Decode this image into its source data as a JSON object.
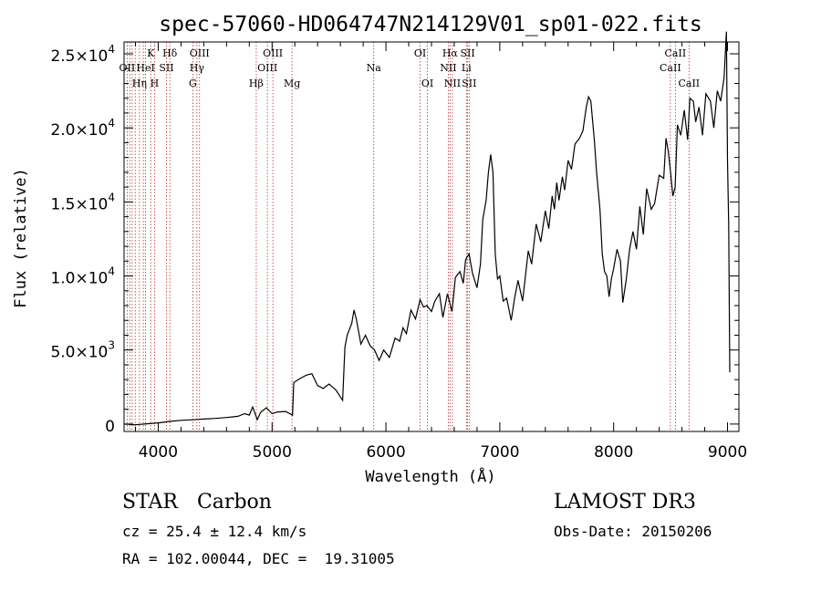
{
  "chart_data": {
    "type": "line",
    "title": "spec-57060-HD064747N214129V01_sp01-022.fits",
    "xlabel": "Wavelength (Å)",
    "ylabel": "Flux (relative)",
    "xlim": [
      3700,
      9100
    ],
    "ylim": [
      -500,
      25800
    ],
    "x_ticks": [
      {
        "value": 4000,
        "label": "4000"
      },
      {
        "value": 5000,
        "label": "5000"
      },
      {
        "value": 6000,
        "label": "6000"
      },
      {
        "value": 7000,
        "label": "7000"
      },
      {
        "value": 8000,
        "label": "8000"
      },
      {
        "value": 9000,
        "label": "9000"
      }
    ],
    "y_ticks": [
      {
        "value": 0,
        "mant": "0",
        "exp": ""
      },
      {
        "value": 5000,
        "mant": "5.0×10",
        "exp": "3"
      },
      {
        "value": 10000,
        "mant": "1.0×10",
        "exp": "4"
      },
      {
        "value": 15000,
        "mant": "1.5×10",
        "exp": "4"
      },
      {
        "value": 20000,
        "mant": "2.0×10",
        "exp": "4"
      },
      {
        "value": 25000,
        "mant": "2.5×10",
        "exp": "4"
      }
    ],
    "lines": [
      {
        "wl": 3727,
        "label": "OII",
        "row": 1
      },
      {
        "wl": 3750,
        "label": "",
        "row": 0
      },
      {
        "wl": 3771,
        "label": "",
        "row": 0
      },
      {
        "wl": 3798,
        "label": "",
        "row": 0
      },
      {
        "wl": 3835,
        "label": "Hη",
        "row": 2
      },
      {
        "wl": 3869,
        "label": "",
        "row": 0
      },
      {
        "wl": 3889,
        "label": "HeI",
        "row": 1
      },
      {
        "wl": 3934,
        "label": "K",
        "row": 0
      },
      {
        "wl": 3968,
        "label": "H",
        "row": 2
      },
      {
        "wl": 4072,
        "label": "SII",
        "row": 1
      },
      {
        "wl": 4102,
        "label": "Hδ",
        "row": 0
      },
      {
        "wl": 4304,
        "label": "G",
        "row": 2
      },
      {
        "wl": 4340,
        "label": "Hγ",
        "row": 1
      },
      {
        "wl": 4363,
        "label": "OIII",
        "row": 0
      },
      {
        "wl": 4861,
        "label": "Hβ",
        "row": 2
      },
      {
        "wl": 4959,
        "label": "OIII",
        "row": 1
      },
      {
        "wl": 5007,
        "label": "OIII",
        "row": 0
      },
      {
        "wl": 5175,
        "label": "Mg",
        "row": 2
      },
      {
        "wl": 5893,
        "label": "Na",
        "row": 1
      },
      {
        "wl": 6300,
        "label": "OI",
        "row": 0
      },
      {
        "wl": 6364,
        "label": "OI",
        "row": 2
      },
      {
        "wl": 6548,
        "label": "NII",
        "row": 1
      },
      {
        "wl": 6563,
        "label": "Hα",
        "row": 0
      },
      {
        "wl": 6584,
        "label": "NII",
        "row": 2
      },
      {
        "wl": 6707,
        "label": "Li",
        "row": 1
      },
      {
        "wl": 6717,
        "label": "SII",
        "row": 0
      },
      {
        "wl": 6731,
        "label": "SII",
        "row": 2
      },
      {
        "wl": 8498,
        "label": "CaII",
        "row": 1
      },
      {
        "wl": 8542,
        "label": "CaII",
        "row": 0
      },
      {
        "wl": 8662,
        "label": "CaII",
        "row": 2
      }
    ],
    "series": [
      {
        "name": "flux",
        "points": [
          [
            3700,
            0
          ],
          [
            3800,
            -50
          ],
          [
            3900,
            20
          ],
          [
            4000,
            80
          ],
          [
            4100,
            180
          ],
          [
            4200,
            250
          ],
          [
            4300,
            290
          ],
          [
            4400,
            340
          ],
          [
            4500,
            380
          ],
          [
            4600,
            440
          ],
          [
            4700,
            520
          ],
          [
            4760,
            700
          ],
          [
            4800,
            600
          ],
          [
            4830,
            1150
          ],
          [
            4870,
            300
          ],
          [
            4900,
            800
          ],
          [
            4950,
            1100
          ],
          [
            5000,
            700
          ],
          [
            5050,
            820
          ],
          [
            5120,
            850
          ],
          [
            5180,
            600
          ],
          [
            5190,
            2800
          ],
          [
            5250,
            3100
          ],
          [
            5300,
            3300
          ],
          [
            5350,
            3400
          ],
          [
            5400,
            2600
          ],
          [
            5450,
            2400
          ],
          [
            5500,
            2700
          ],
          [
            5560,
            2300
          ],
          [
            5620,
            1600
          ],
          [
            5640,
            5200
          ],
          [
            5660,
            6000
          ],
          [
            5700,
            6800
          ],
          [
            5720,
            7700
          ],
          [
            5740,
            7100
          ],
          [
            5780,
            5400
          ],
          [
            5820,
            6000
          ],
          [
            5860,
            5300
          ],
          [
            5900,
            5000
          ],
          [
            5940,
            4300
          ],
          [
            5980,
            5000
          ],
          [
            6030,
            4500
          ],
          [
            6080,
            5800
          ],
          [
            6120,
            5600
          ],
          [
            6150,
            6500
          ],
          [
            6180,
            6100
          ],
          [
            6220,
            7700
          ],
          [
            6260,
            7100
          ],
          [
            6300,
            8400
          ],
          [
            6330,
            7900
          ],
          [
            6360,
            8000
          ],
          [
            6400,
            7600
          ],
          [
            6430,
            8300
          ],
          [
            6470,
            8800
          ],
          [
            6500,
            7200
          ],
          [
            6540,
            8800
          ],
          [
            6580,
            7600
          ],
          [
            6610,
            9900
          ],
          [
            6650,
            10300
          ],
          [
            6680,
            9500
          ],
          [
            6700,
            11100
          ],
          [
            6730,
            11500
          ],
          [
            6760,
            10200
          ],
          [
            6800,
            9200
          ],
          [
            6830,
            10800
          ],
          [
            6850,
            13800
          ],
          [
            6880,
            15100
          ],
          [
            6900,
            17000
          ],
          [
            6920,
            18200
          ],
          [
            6940,
            17000
          ],
          [
            6960,
            11500
          ],
          [
            6980,
            9800
          ],
          [
            7000,
            10000
          ],
          [
            7030,
            8300
          ],
          [
            7060,
            8500
          ],
          [
            7100,
            7000
          ],
          [
            7130,
            8500
          ],
          [
            7160,
            9700
          ],
          [
            7200,
            8300
          ],
          [
            7250,
            11700
          ],
          [
            7280,
            10800
          ],
          [
            7320,
            13500
          ],
          [
            7360,
            12300
          ],
          [
            7400,
            14400
          ],
          [
            7430,
            13200
          ],
          [
            7460,
            15400
          ],
          [
            7480,
            14500
          ],
          [
            7500,
            16300
          ],
          [
            7520,
            15100
          ],
          [
            7550,
            16700
          ],
          [
            7570,
            15800
          ],
          [
            7600,
            17800
          ],
          [
            7630,
            17200
          ],
          [
            7660,
            18900
          ],
          [
            7700,
            19300
          ],
          [
            7730,
            19800
          ],
          [
            7760,
            21400
          ],
          [
            7780,
            22100
          ],
          [
            7800,
            21800
          ],
          [
            7830,
            19200
          ],
          [
            7850,
            17000
          ],
          [
            7880,
            14500
          ],
          [
            7900,
            11500
          ],
          [
            7920,
            10300
          ],
          [
            7940,
            10000
          ],
          [
            7960,
            8600
          ],
          [
            7980,
            9800
          ],
          [
            8000,
            10500
          ],
          [
            8030,
            11800
          ],
          [
            8060,
            11000
          ],
          [
            8080,
            8200
          ],
          [
            8110,
            9700
          ],
          [
            8140,
            11800
          ],
          [
            8170,
            13000
          ],
          [
            8200,
            11800
          ],
          [
            8230,
            14700
          ],
          [
            8260,
            12800
          ],
          [
            8290,
            15900
          ],
          [
            8330,
            14500
          ],
          [
            8360,
            14900
          ],
          [
            8400,
            16800
          ],
          [
            8440,
            16600
          ],
          [
            8460,
            19300
          ],
          [
            8480,
            18400
          ],
          [
            8500,
            17000
          ],
          [
            8520,
            15400
          ],
          [
            8540,
            16000
          ],
          [
            8560,
            20200
          ],
          [
            8590,
            19500
          ],
          [
            8620,
            21200
          ],
          [
            8650,
            19200
          ],
          [
            8670,
            22000
          ],
          [
            8700,
            21800
          ],
          [
            8720,
            20400
          ],
          [
            8750,
            21400
          ],
          [
            8780,
            19500
          ],
          [
            8810,
            22300
          ],
          [
            8850,
            21800
          ],
          [
            8880,
            20000
          ],
          [
            8910,
            22500
          ],
          [
            8940,
            21800
          ],
          [
            8970,
            23400
          ],
          [
            8990,
            26500
          ],
          [
            9000,
            17800
          ],
          [
            9010,
            13500
          ],
          [
            9020,
            3500
          ]
        ]
      }
    ]
  },
  "info": {
    "object_class": "STAR   Carbon",
    "cz": "cz = 25.4 ± 12.4 km/s",
    "radec": "RA = 102.00044, DEC =  19.31005",
    "survey": "LAMOST DR3",
    "obs_date": "Obs-Date: 20150206"
  }
}
